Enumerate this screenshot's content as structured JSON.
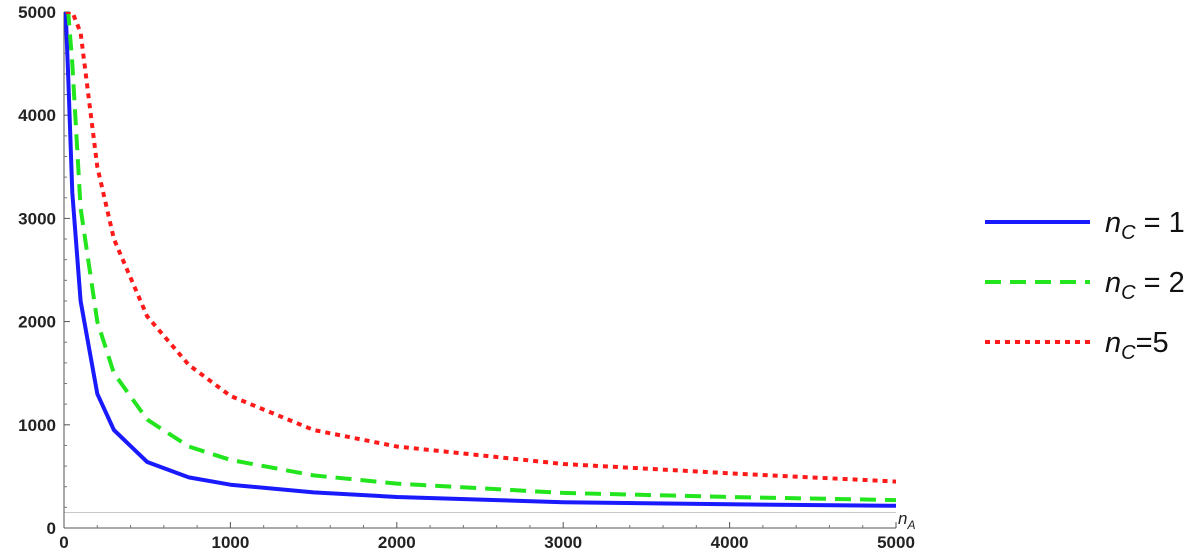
{
  "chart_data": {
    "type": "line",
    "title": "",
    "xlabel": "n_A",
    "ylabel": "",
    "xlim": [
      0,
      5000
    ],
    "ylim": [
      0,
      5000
    ],
    "x_ticks": [
      0,
      1000,
      2000,
      3000,
      4000,
      5000
    ],
    "y_ticks": [
      0,
      1000,
      2000,
      3000,
      4000,
      5000
    ],
    "x_tick_labels": [
      "0",
      "1000",
      "2000",
      "3000",
      "4000",
      "5000"
    ],
    "y_tick_labels": [
      "0",
      "1000",
      "2000",
      "3000",
      "4000",
      "5000"
    ],
    "reference_line_y": 150,
    "legend_position": "right",
    "x": [
      10,
      25,
      50,
      100,
      200,
      300,
      500,
      750,
      1000,
      1500,
      2000,
      3000,
      4000,
      5000
    ],
    "series": [
      {
        "name": "n_C = 1",
        "color": "#1a1aff",
        "style": "solid",
        "values": [
          5000,
          4380,
          3250,
          2200,
          1300,
          950,
          640,
          490,
          420,
          345,
          300,
          250,
          230,
          215
        ]
      },
      {
        "name": "n_C = 2",
        "color": "#22e51e",
        "style": "dashed",
        "values": [
          5000,
          5000,
          4500,
          3100,
          2000,
          1500,
          1050,
          790,
          660,
          510,
          430,
          340,
          300,
          270
        ]
      },
      {
        "name": "n_C=5",
        "color": "#ff1a1a",
        "style": "dotted",
        "values": [
          5000,
          5000,
          5000,
          4800,
          3500,
          2800,
          2050,
          1580,
          1280,
          950,
          790,
          620,
          530,
          450
        ]
      }
    ]
  },
  "legend": {
    "items": [
      {
        "prefix": "n",
        "sub": "C",
        "suffix": " = 1",
        "color": "#1a1aff",
        "style": "solid"
      },
      {
        "prefix": "n",
        "sub": "C",
        "suffix": " = 2",
        "color": "#22e51e",
        "style": "dashed"
      },
      {
        "prefix": "n",
        "sub": "C",
        "suffix": "=5",
        "color": "#ff1a1a",
        "style": "dotted"
      }
    ]
  },
  "axis_label": {
    "main": "n",
    "sub": "A"
  }
}
